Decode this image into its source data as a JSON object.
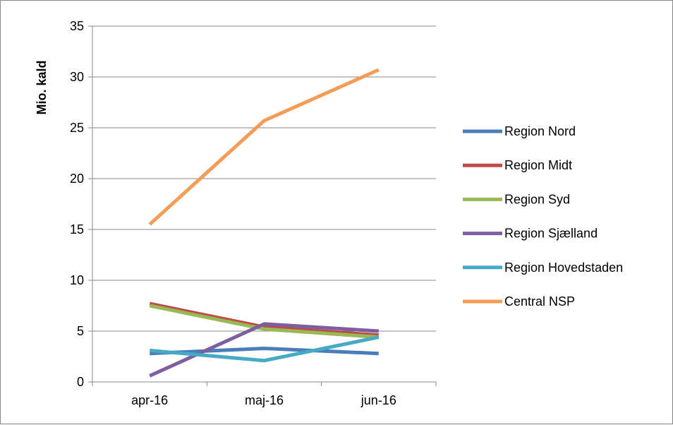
{
  "chart_data": {
    "type": "line",
    "title": "",
    "xlabel": "",
    "ylabel": "Mio. kald",
    "categories": [
      "apr-16",
      "maj-16",
      "jun-16"
    ],
    "ylim": [
      0,
      35
    ],
    "yticks": [
      0,
      5,
      10,
      15,
      20,
      25,
      30,
      35
    ],
    "grid": true,
    "legend_position": "right",
    "series": [
      {
        "name": "Region Nord",
        "color": "#4A7EBB",
        "values": [
          2.8,
          3.3,
          2.8
        ]
      },
      {
        "name": "Region Midt",
        "color": "#BE4B48",
        "values": [
          7.7,
          5.4,
          4.6
        ]
      },
      {
        "name": "Region Syd",
        "color": "#98B954",
        "values": [
          7.5,
          5.2,
          4.4
        ]
      },
      {
        "name": "Region Sjælland",
        "color": "#7D5FA0",
        "values": [
          0.6,
          5.7,
          5.0
        ]
      },
      {
        "name": "Region Hovedstaden",
        "color": "#46AAC5",
        "values": [
          3.1,
          2.1,
          4.4
        ]
      },
      {
        "name": "Central NSP",
        "color": "#F59D56",
        "values": [
          15.5,
          25.7,
          30.7
        ]
      }
    ]
  }
}
